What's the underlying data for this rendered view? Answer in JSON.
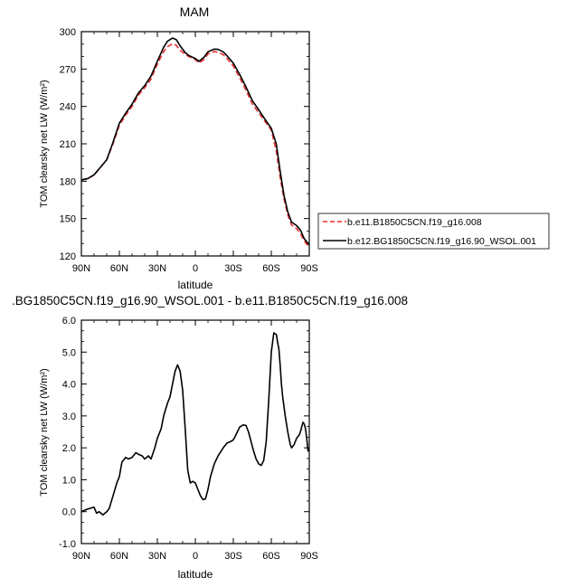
{
  "chart_data": [
    {
      "type": "line",
      "title": "MAM",
      "xlabel": "latitude",
      "ylabel": "TOM clearsky net LW (W/m²)",
      "ylim": [
        120,
        300
      ],
      "yticks": [
        120,
        150,
        180,
        210,
        240,
        270,
        300
      ],
      "xlim": [
        90,
        -90
      ],
      "xticks": [
        90,
        60,
        30,
        0,
        -30,
        -60,
        -90
      ],
      "xtick_labels": [
        "90N",
        "60N",
        "30N",
        "0",
        "30S",
        "60S",
        "90S"
      ],
      "legend_position": "right",
      "series": [
        {
          "name": "b.e11.B1850C5CN.f19_g16.008",
          "color": "#e8302e",
          "style": "dashed",
          "x": [
            90,
            85,
            80,
            75,
            70,
            65,
            60,
            55,
            50,
            45,
            40,
            35,
            30,
            25,
            22,
            18,
            15,
            12,
            8,
            5,
            0,
            -3,
            -7,
            -10,
            -15,
            -18,
            -22,
            -25,
            -30,
            -35,
            -40,
            -45,
            -50,
            -55,
            -60,
            -64,
            -67,
            -70,
            -73,
            -76,
            -80,
            -83,
            -86,
            -90
          ],
          "y": [
            181,
            182,
            185,
            191,
            197,
            210,
            225,
            233,
            240,
            249,
            255,
            262,
            274,
            284,
            288,
            290.3,
            289,
            285,
            281.8,
            279.9,
            277.6,
            274.8,
            277.9,
            282.2,
            284,
            283.5,
            281.5,
            278.5,
            272.5,
            263,
            253,
            242,
            235,
            228,
            221,
            204,
            183,
            166,
            153,
            145,
            142,
            138,
            132,
            127
          ]
        },
        {
          "name": "b.e12.BG1850C5CN.f19_g16.90_WSOL.001",
          "color": "#000000",
          "style": "solid",
          "x": [
            90,
            85,
            80,
            75,
            70,
            65,
            60,
            55,
            50,
            45,
            40,
            35,
            30,
            25,
            22,
            18,
            15,
            12,
            8,
            5,
            0,
            -3,
            -7,
            -10,
            -15,
            -18,
            -22,
            -25,
            -30,
            -35,
            -40,
            -45,
            -50,
            -55,
            -60,
            -64,
            -67,
            -70,
            -73,
            -76,
            -80,
            -83,
            -86,
            -90
          ],
          "y": [
            181,
            182.1,
            185.1,
            191.1,
            197.2,
            211.3,
            226.6,
            234.6,
            241.8,
            250.7,
            256.7,
            264.4,
            276.3,
            287.5,
            292.3,
            294.9,
            293.5,
            288.6,
            283.2,
            280.8,
            278.4,
            276.2,
            279.6,
            283.9,
            286,
            285.8,
            283.8,
            280.7,
            274.7,
            265.7,
            255.7,
            244.7,
            237.4,
            229.7,
            222.5,
            209.6,
            188.0,
            168.7,
            155.5,
            147.2,
            144.4,
            140.8,
            133.9,
            128.9
          ]
        }
      ]
    },
    {
      "type": "line",
      "title": ".BG1850C5CN.f19_g16.90_WSOL.001 - b.e11.B1850C5CN.f19_g16.008",
      "xlabel": "latitude",
      "ylabel": "TOM clearsky net LW (W/m²)",
      "ylim": [
        -1.0,
        6.0
      ],
      "yticks": [
        -1.0,
        0.0,
        1.0,
        2.0,
        3.0,
        4.0,
        5.0,
        6.0
      ],
      "ytick_labels": [
        "-1.0",
        "0.0",
        "1.0",
        "2.0",
        "3.0",
        "4.0",
        "5.0",
        "6.0"
      ],
      "xlim": [
        90,
        -90
      ],
      "xticks": [
        90,
        60,
        30,
        0,
        -30,
        -60,
        -90
      ],
      "xtick_labels": [
        "90N",
        "60N",
        "30N",
        "0",
        "30S",
        "60S",
        "90S"
      ],
      "series": [
        {
          "color": "#000000",
          "style": "solid",
          "x": [
            90,
            86,
            82,
            80,
            78,
            76,
            73,
            70,
            68,
            65,
            62,
            60,
            58,
            55,
            53,
            50,
            47,
            45,
            42,
            40,
            37,
            35,
            32,
            30,
            27,
            25,
            22,
            20,
            18,
            16,
            14,
            12,
            10,
            8,
            6,
            4,
            2,
            0,
            -2,
            -4,
            -6,
            -8,
            -10,
            -12,
            -15,
            -18,
            -22,
            -25,
            -28,
            -30,
            -32,
            -35,
            -38,
            -40,
            -42,
            -44,
            -46,
            -48,
            -50,
            -52,
            -54,
            -56,
            -58,
            -60,
            -62,
            -64,
            -65,
            -66,
            -67,
            -68,
            -69,
            -70,
            -71,
            -72,
            -73,
            -74,
            -75,
            -76,
            -77,
            -78,
            -79,
            -80,
            -81,
            -82,
            -83,
            -84,
            -85,
            -86,
            -87,
            -88,
            -89,
            -90
          ],
          "y": [
            0.0,
            0.07,
            0.12,
            0.14,
            -0.05,
            0.0,
            -0.1,
            0.0,
            0.1,
            0.5,
            0.9,
            1.1,
            1.55,
            1.7,
            1.65,
            1.7,
            1.85,
            1.8,
            1.75,
            1.65,
            1.75,
            1.65,
            2.0,
            2.3,
            2.6,
            3.0,
            3.4,
            3.6,
            4.0,
            4.4,
            4.6,
            4.4,
            3.8,
            2.6,
            1.3,
            0.9,
            0.95,
            0.9,
            0.7,
            0.5,
            0.38,
            0.4,
            0.7,
            1.1,
            1.5,
            1.75,
            2.0,
            2.15,
            2.2,
            2.25,
            2.4,
            2.65,
            2.72,
            2.7,
            2.5,
            2.2,
            1.9,
            1.65,
            1.5,
            1.45,
            1.6,
            2.2,
            3.5,
            5.0,
            5.6,
            5.55,
            5.3,
            5.1,
            4.6,
            4.0,
            3.6,
            3.3,
            3.0,
            2.75,
            2.5,
            2.3,
            2.1,
            2.0,
            2.05,
            2.1,
            2.2,
            2.3,
            2.35,
            2.4,
            2.5,
            2.65,
            2.8,
            2.75,
            2.6,
            2.3,
            1.9,
            1.95
          ]
        }
      ]
    }
  ]
}
